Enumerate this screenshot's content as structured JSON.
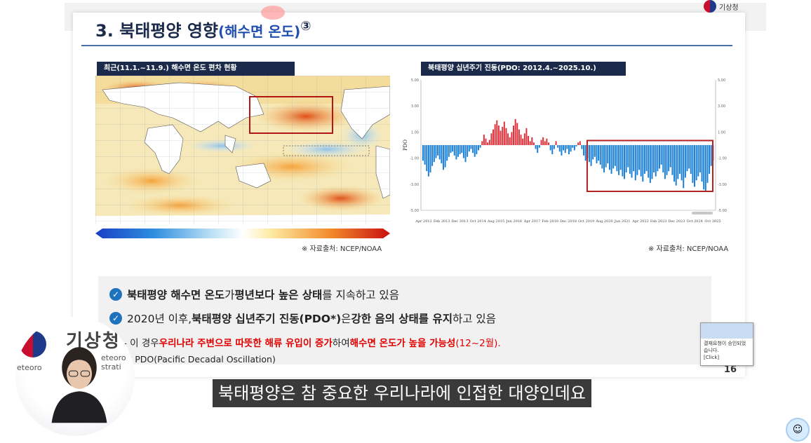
{
  "slide": {
    "title_main": "3. 북태평양 영향",
    "title_sub": "(해수면 온도)",
    "title_circ": "③",
    "page_number": "16",
    "logo_text": "기상청"
  },
  "left_panel": {
    "header": "최근(11.1.~11.9.) 해수면 온도 편차 현황",
    "source": "※ 자료출처: NCEP/NOAA"
  },
  "right_panel": {
    "header": "북태평양 십년주기 진동(PDO: 2012.4.~2025.10.)",
    "source": "※ 자료출처: NCEP/NOAA"
  },
  "bullets": {
    "b1": {
      "p1": "북태평양 해수면 온도",
      "p2": "가 ",
      "p3": "평년보다 높은 상태",
      "p4": "를 지속하고 있음"
    },
    "b2": {
      "p1": "2020년 이후, ",
      "p2": "북태평양 십년주기 진동(PDO*)",
      "p3": "은 ",
      "p4": "강한 음의 상태를 유지",
      "p5": "하고 있음"
    },
    "b3": {
      "p0": "-  이 경우 ",
      "p1": "우리나라 주변으로 따뜻한 해류 유입이 증가",
      "p2": "하여 ",
      "p3": "해수면 온도가 높을 가능성",
      "p4": "(12~2월)."
    },
    "b4": "* PDO(Pacific Decadal Oscillation)"
  },
  "popup": {
    "line1": "결재요청이 승인되었",
    "line2": "습니다.",
    "line3": "[Click]"
  },
  "caption": "북태평양은 참 중요한 우리나라에 인접한 대양인데요",
  "webcam": {
    "logo_text": "기상청",
    "org_text_1": "eteoro",
    "org_text_2": "strati"
  },
  "chart_data": [
    {
      "type": "bar",
      "title": "북태평양 십년주기 진동(PDO: 2012.4.~2025.10.)",
      "ylabel": "PDO",
      "ylim": [
        -5,
        5
      ],
      "yticks": [
        "5.00",
        "3.00",
        "1.00",
        "-1.00",
        "-3.00",
        "-5.00"
      ],
      "xticks": [
        "Apr 2012",
        "Feb 2013",
        "Dec 2013",
        "Oct 2014",
        "Aug 2015",
        "Jun 2016",
        "Apr 2017",
        "Feb 2018",
        "Dec 2018",
        "Oct 2019",
        "Aug 2020",
        "Jun 2021",
        "Apr 2022",
        "Feb 2023",
        "Dec 2023",
        "Oct 2024",
        "Oct 2025"
      ],
      "colors": {
        "positive": "#e0303a",
        "negative": "#1a7fd6",
        "highlight": "#b22222"
      },
      "values": [
        -1.2,
        -1.5,
        -2.0,
        -2.4,
        -2.1,
        -1.6,
        -1.3,
        -1.0,
        -0.8,
        -1.1,
        -1.4,
        -1.9,
        -1.7,
        -1.2,
        -0.9,
        -0.6,
        -0.5,
        -0.8,
        -1.1,
        -0.9,
        -0.7,
        -0.6,
        -1.0,
        -1.3,
        -0.9,
        -0.5,
        -0.3,
        -0.6,
        -0.9,
        -0.7,
        -0.4,
        -0.2,
        0.3,
        0.8,
        0.5,
        0.2,
        0.4,
        0.9,
        1.2,
        1.6,
        1.9,
        1.5,
        1.1,
        1.4,
        1.8,
        1.3,
        0.9,
        0.6,
        1.0,
        1.5,
        2.0,
        1.7,
        1.2,
        0.8,
        0.5,
        0.9,
        1.3,
        0.7,
        0.3,
        0.6,
        0.2,
        -0.3,
        -0.6,
        -0.2,
        0.4,
        0.6,
        0.3,
        0.5,
        0.2,
        -0.4,
        -0.7,
        -0.3,
        0.3,
        -0.2,
        -0.5,
        -0.8,
        -0.4,
        -0.6,
        -0.3,
        -0.7,
        -0.5,
        -0.2,
        -0.4,
        -0.1,
        0.2,
        0.3,
        -0.3,
        -0.8,
        -1.2,
        -1.0,
        -1.3,
        -1.6,
        -1.1,
        -0.9,
        -1.4,
        -1.2,
        -1.5,
        -1.8,
        -2.1,
        -1.7,
        -1.4,
        -1.9,
        -2.2,
        -1.8,
        -1.6,
        -2.0,
        -2.3,
        -1.9,
        -2.4,
        -2.6,
        -2.1,
        -1.7,
        -2.2,
        -2.5,
        -2.0,
        -2.7,
        -2.3,
        -1.9,
        -2.4,
        -2.8,
        -2.2,
        -2.0,
        -2.5,
        -2.9,
        -2.6,
        -2.1,
        -2.4,
        -2.0,
        -1.8,
        -1.5,
        -2.1,
        -2.6,
        -2.3,
        -2.0,
        -1.7,
        -2.3,
        -2.8,
        -3.1,
        -2.6,
        -2.2,
        -2.7,
        -3.3,
        -2.5,
        -2.0,
        -1.8,
        -2.2,
        -2.9,
        -3.2,
        -2.7,
        -2.4,
        -2.1,
        -2.8,
        -3.4,
        -3.6,
        -2.9,
        -2.2,
        -1.6,
        -1.2
      ]
    }
  ]
}
